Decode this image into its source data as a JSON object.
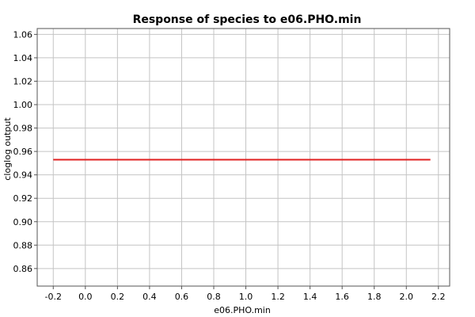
{
  "chart_data": {
    "type": "line",
    "title": "Response of species to e06.PHO.min",
    "xlabel": "e06.PHO.min",
    "ylabel": "cloglog output",
    "xlim": [
      -0.3,
      2.27
    ],
    "ylim": [
      0.845,
      1.065
    ],
    "x_ticks": [
      -0.2,
      0.0,
      0.2,
      0.4,
      0.6,
      0.8,
      1.0,
      1.2,
      1.4,
      1.6,
      1.8,
      2.0,
      2.2
    ],
    "x_tick_labels": [
      "-0.2",
      "0.0",
      "0.2",
      "0.4",
      "0.6",
      "0.8",
      "1.0",
      "1.2",
      "1.4",
      "1.6",
      "1.8",
      "2.0",
      "2.2"
    ],
    "y_ticks": [
      0.86,
      0.88,
      0.9,
      0.92,
      0.94,
      0.96,
      0.98,
      1.0,
      1.02,
      1.04,
      1.06
    ],
    "y_tick_labels": [
      "0.86",
      "0.88",
      "0.90",
      "0.92",
      "0.94",
      "0.96",
      "0.98",
      "1.00",
      "1.02",
      "1.04",
      "1.06"
    ],
    "grid": true,
    "legend": "none",
    "series": [
      {
        "x": [
          -0.2,
          2.15
        ],
        "y": [
          0.953,
          0.953
        ],
        "color": "#e02020"
      }
    ]
  }
}
